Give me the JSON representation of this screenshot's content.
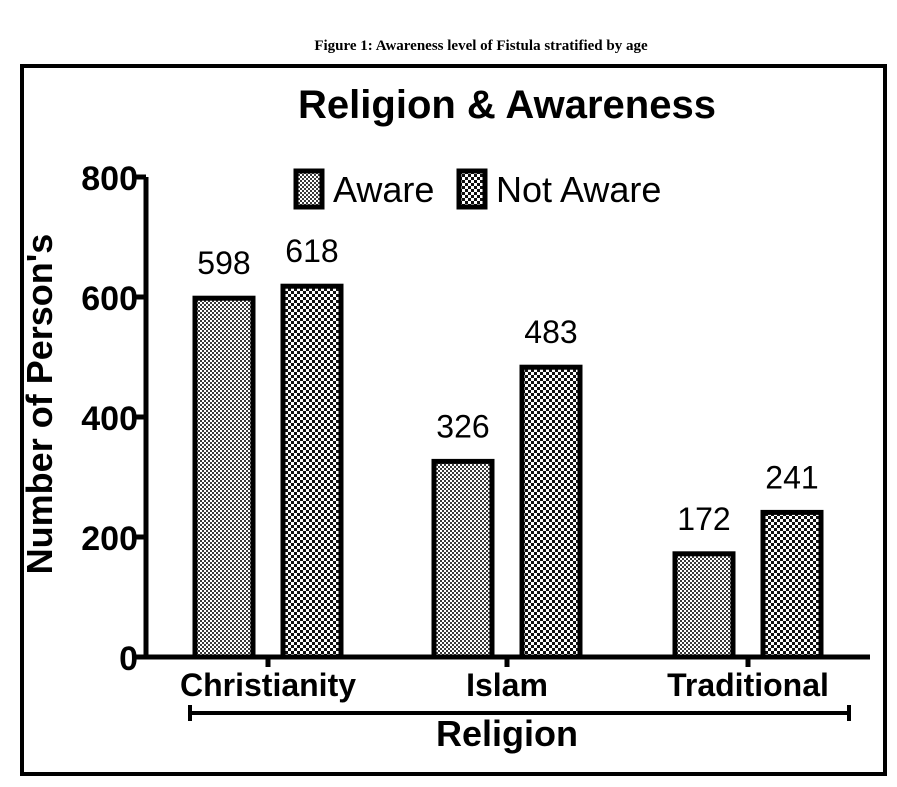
{
  "figure_caption": "Figure 1: Awareness level of Fistula stratified by age",
  "chart_data": {
    "type": "bar",
    "title": "Religion & Awareness",
    "xlabel": "Religion",
    "ylabel": "Number of Person's",
    "categories": [
      "Christianity",
      "Islam",
      "Traditional"
    ],
    "series": [
      {
        "name": "Aware",
        "values": [
          598,
          326,
          172
        ]
      },
      {
        "name": "Not Aware",
        "values": [
          618,
          483,
          241
        ]
      }
    ],
    "data_labels": [
      [
        "598",
        "618"
      ],
      [
        "326",
        "483"
      ],
      [
        "172",
        "241"
      ]
    ],
    "ylim": [
      0,
      800
    ],
    "yticks": [
      "0",
      "200",
      "400",
      "600",
      "800"
    ],
    "legend": "top-right",
    "grid": false,
    "colors": {
      "axis": "#000000",
      "bar_edge": "#000000",
      "fill_light": "#ffffff",
      "fill_dark": "#222222"
    }
  }
}
